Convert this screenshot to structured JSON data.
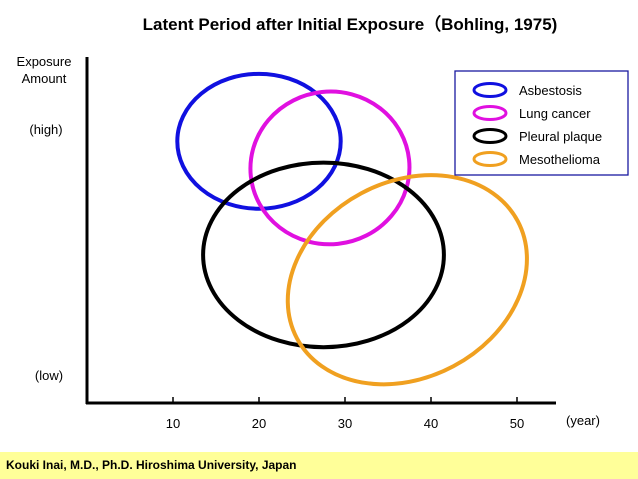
{
  "chart_data": {
    "type": "scatter",
    "title": "Latent Period after Initial Exposure（Bohling, 1975)",
    "ylabel": [
      "Exposure",
      "Amount"
    ],
    "ylabels_qualitative": {
      "high": "(high)",
      "low": "(low)"
    },
    "xlabel_unit": "(year)",
    "xticks": [
      10,
      20,
      30,
      40,
      50
    ],
    "xlim": [
      0,
      55
    ],
    "grid": false,
    "legend_position": "top-right",
    "series": [
      {
        "name": "Asbestosis",
        "color": "#1010E0",
        "x_range": [
          10.5,
          29.5
        ],
        "y_range": [
          0.55,
          0.93
        ]
      },
      {
        "name": "Lung cancer",
        "color": "#E010E0",
        "x_range": [
          19,
          37.5
        ],
        "y_range": [
          0.45,
          0.88
        ]
      },
      {
        "name": "Pleural plaque",
        "color": "#000000",
        "x_range": [
          13.5,
          41.5
        ],
        "y_range": [
          0.16,
          0.68
        ]
      },
      {
        "name": "Mesothelioma",
        "color": "#F0A020",
        "x_range": [
          20.5,
          54
        ],
        "y_range": [
          0.05,
          0.65
        ]
      }
    ]
  },
  "footer": "Kouki Inai, M.D., Ph.D. Hiroshima University,  Japan"
}
